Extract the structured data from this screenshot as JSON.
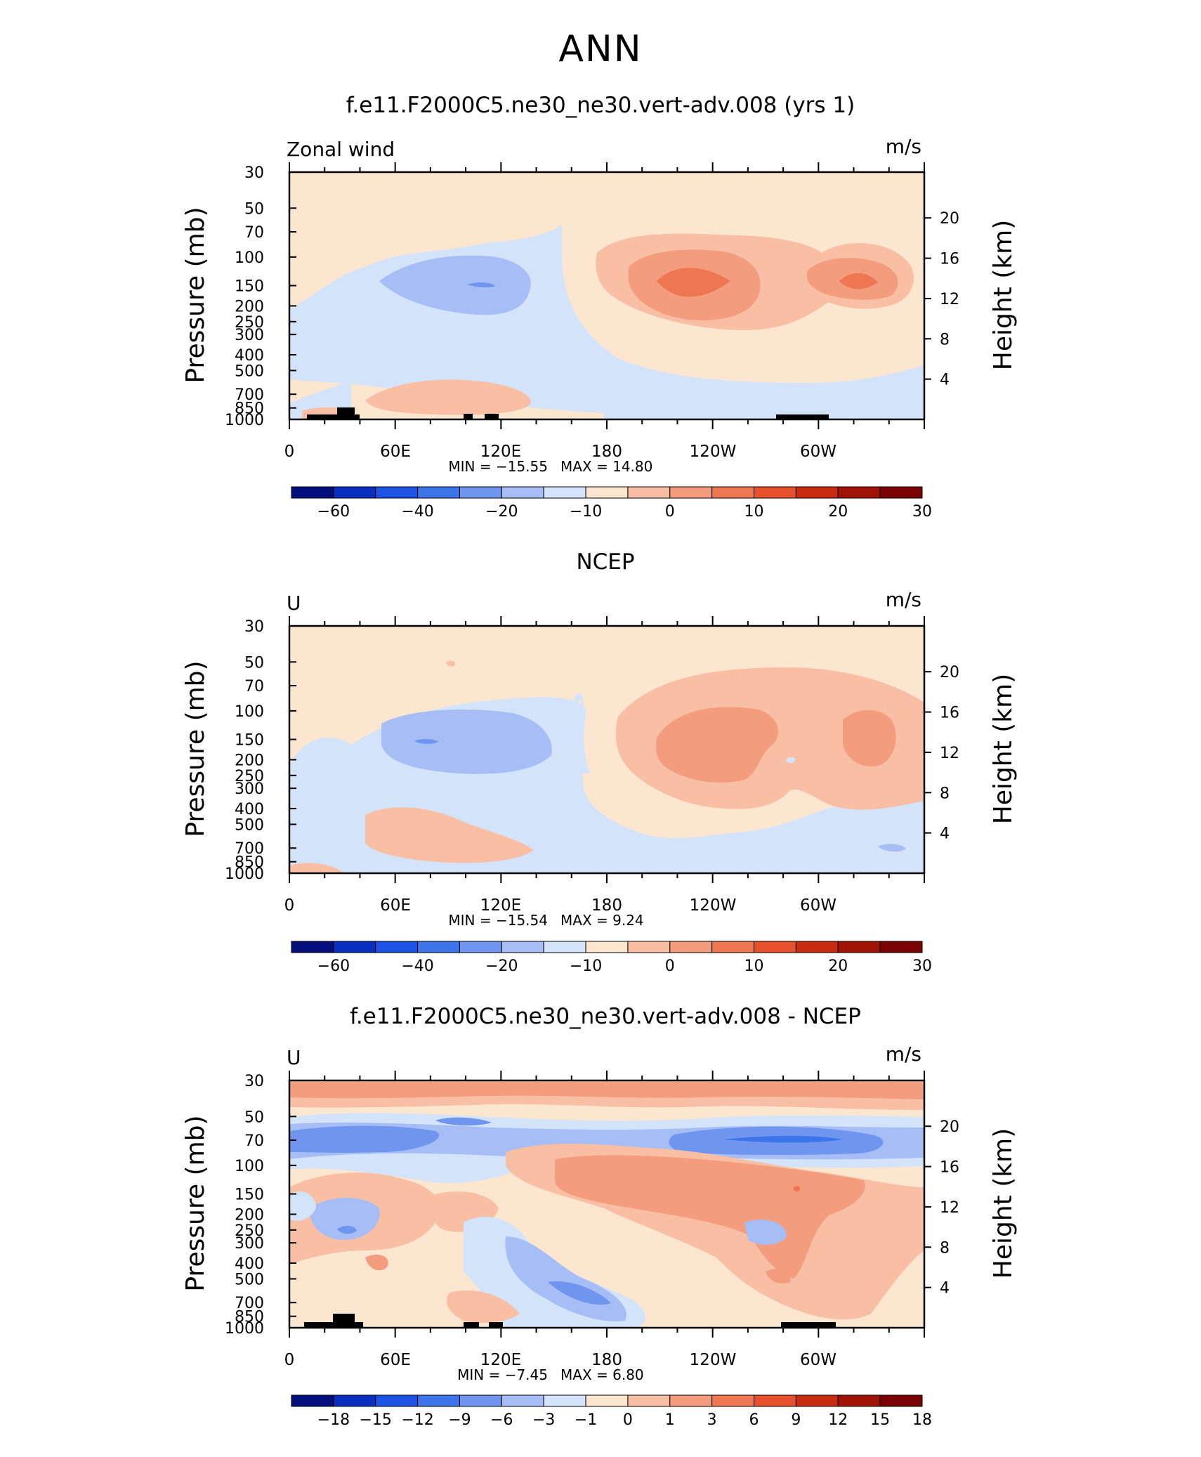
{
  "figure": {
    "season_title": "ANN"
  },
  "panels": [
    {
      "title": "f.e11.F2000C5.ne30_ne30.vert-adv.008 (yrs 1)",
      "variable_label": "Zonal wind",
      "units": "m/s",
      "min_label": "MIN = −15.55",
      "max_label": "MAX = 14.80"
    },
    {
      "title": "NCEP",
      "variable_label": "U",
      "units": "m/s",
      "min_label": "MIN = −15.54",
      "max_label": "MAX = 9.24"
    },
    {
      "title": "f.e11.F2000C5.ne30_ne30.vert-adv.008 - NCEP",
      "variable_label": "U",
      "units": "m/s",
      "min_label": "MIN = −7.45",
      "max_label": "MAX = 6.80"
    }
  ],
  "chart_data": [
    {
      "type": "heatmap",
      "title": "f.e11.F2000C5.ne30_ne30.vert-adv.008 (yrs 1)",
      "variable": "Zonal wind",
      "units": "m/s",
      "ylabel": "Pressure (mb)",
      "y2label": "Height (km)",
      "x_ticks": [
        "0",
        "60E",
        "120E",
        "180",
        "120W",
        "60W"
      ],
      "y_ticks": [
        "30",
        "50",
        "70",
        "100",
        "150",
        "200",
        "250",
        "300",
        "400",
        "500",
        "700",
        "850",
        "1000"
      ],
      "y2_ticks": [
        "20",
        "16",
        "12",
        "8",
        "4"
      ],
      "colorbar_labels": [
        "−60",
        "−40",
        "−20",
        "−10",
        "0",
        "10",
        "20",
        "30"
      ],
      "colorbar_colors": [
        "#040e7c",
        "#0a2fc0",
        "#1e54e6",
        "#3d74ea",
        "#6f95ee",
        "#a6bdf6",
        "#d3e4fa",
        "#fde6cf",
        "#f8bfa4",
        "#f49c7e",
        "#ee7650",
        "#e6502c",
        "#c82d10",
        "#a01308",
        "#7b0202"
      ],
      "min": -15.55,
      "max": 14.8,
      "features": [
        {
          "desc": "westerly jet",
          "lon": 225,
          "p": 150,
          "value": 12
        },
        {
          "desc": "westerly jet",
          "lon": 318,
          "p": 150,
          "value": 11
        },
        {
          "desc": "easterly core",
          "lon": 105,
          "p": 150,
          "value": -15
        },
        {
          "desc": "surface westerly",
          "lon": 85,
          "p": 780,
          "value": 4
        }
      ]
    },
    {
      "type": "heatmap",
      "title": "NCEP",
      "variable": "U",
      "units": "m/s",
      "ylabel": "Pressure (mb)",
      "y2label": "Height (km)",
      "x_ticks": [
        "0",
        "60E",
        "120E",
        "180",
        "120W",
        "60W"
      ],
      "y_ticks": [
        "30",
        "50",
        "70",
        "100",
        "150",
        "200",
        "250",
        "300",
        "400",
        "500",
        "700",
        "850",
        "1000"
      ],
      "y2_ticks": [
        "20",
        "16",
        "12",
        "8",
        "4"
      ],
      "colorbar_labels": [
        "−60",
        "−40",
        "−20",
        "−10",
        "0",
        "10",
        "20",
        "30"
      ],
      "colorbar_colors": [
        "#040e7c",
        "#0a2fc0",
        "#1e54e6",
        "#3d74ea",
        "#6f95ee",
        "#a6bdf6",
        "#d3e4fa",
        "#fde6cf",
        "#f8bfa4",
        "#f49c7e",
        "#ee7650",
        "#e6502c",
        "#c82d10",
        "#a01308",
        "#7b0202"
      ],
      "min": -15.54,
      "max": 9.24,
      "features": [
        {
          "desc": "westerly jet",
          "lon": 230,
          "p": 150,
          "value": 8
        },
        {
          "desc": "westerly jet",
          "lon": 325,
          "p": 150,
          "value": 7
        },
        {
          "desc": "easterly core",
          "lon": 85,
          "p": 150,
          "value": -12
        },
        {
          "desc": "surface westerly",
          "lon": 80,
          "p": 780,
          "value": 3
        }
      ]
    },
    {
      "type": "heatmap",
      "title": "f.e11.F2000C5.ne30_ne30.vert-adv.008 - NCEP",
      "variable": "U",
      "units": "m/s",
      "ylabel": "Pressure (mb)",
      "y2label": "Height (km)",
      "x_ticks": [
        "0",
        "60E",
        "120E",
        "180",
        "120W",
        "60W"
      ],
      "y_ticks": [
        "30",
        "50",
        "70",
        "100",
        "150",
        "200",
        "250",
        "300",
        "400",
        "500",
        "700",
        "850",
        "1000"
      ],
      "y2_ticks": [
        "20",
        "16",
        "12",
        "8",
        "4"
      ],
      "colorbar_labels": [
        "−18",
        "−15",
        "−12",
        "−9",
        "−6",
        "−3",
        "−1",
        "0",
        "1",
        "3",
        "6",
        "9",
        "12",
        "15",
        "18"
      ],
      "colorbar_colors": [
        "#040e7c",
        "#0a2fc0",
        "#1e54e6",
        "#3d74ea",
        "#6f95ee",
        "#a6bdf6",
        "#d3e4fa",
        "#fde6cf",
        "#f8bfa4",
        "#f49c7e",
        "#ee7650",
        "#e6502c",
        "#c82d10",
        "#a01308",
        "#7b0202"
      ],
      "min": -7.45,
      "max": 6.8,
      "features": [
        {
          "desc": "upper-level positive band",
          "lon": 180,
          "p": 30,
          "value": 4
        },
        {
          "desc": "stratospheric negative band",
          "lon": 220,
          "p": 70,
          "value": -5
        },
        {
          "desc": "broad positive",
          "lon": 245,
          "p": 160,
          "value": 4
        },
        {
          "desc": "lower tropospheric negative",
          "lon": 165,
          "p": 600,
          "value": -4
        }
      ]
    }
  ]
}
